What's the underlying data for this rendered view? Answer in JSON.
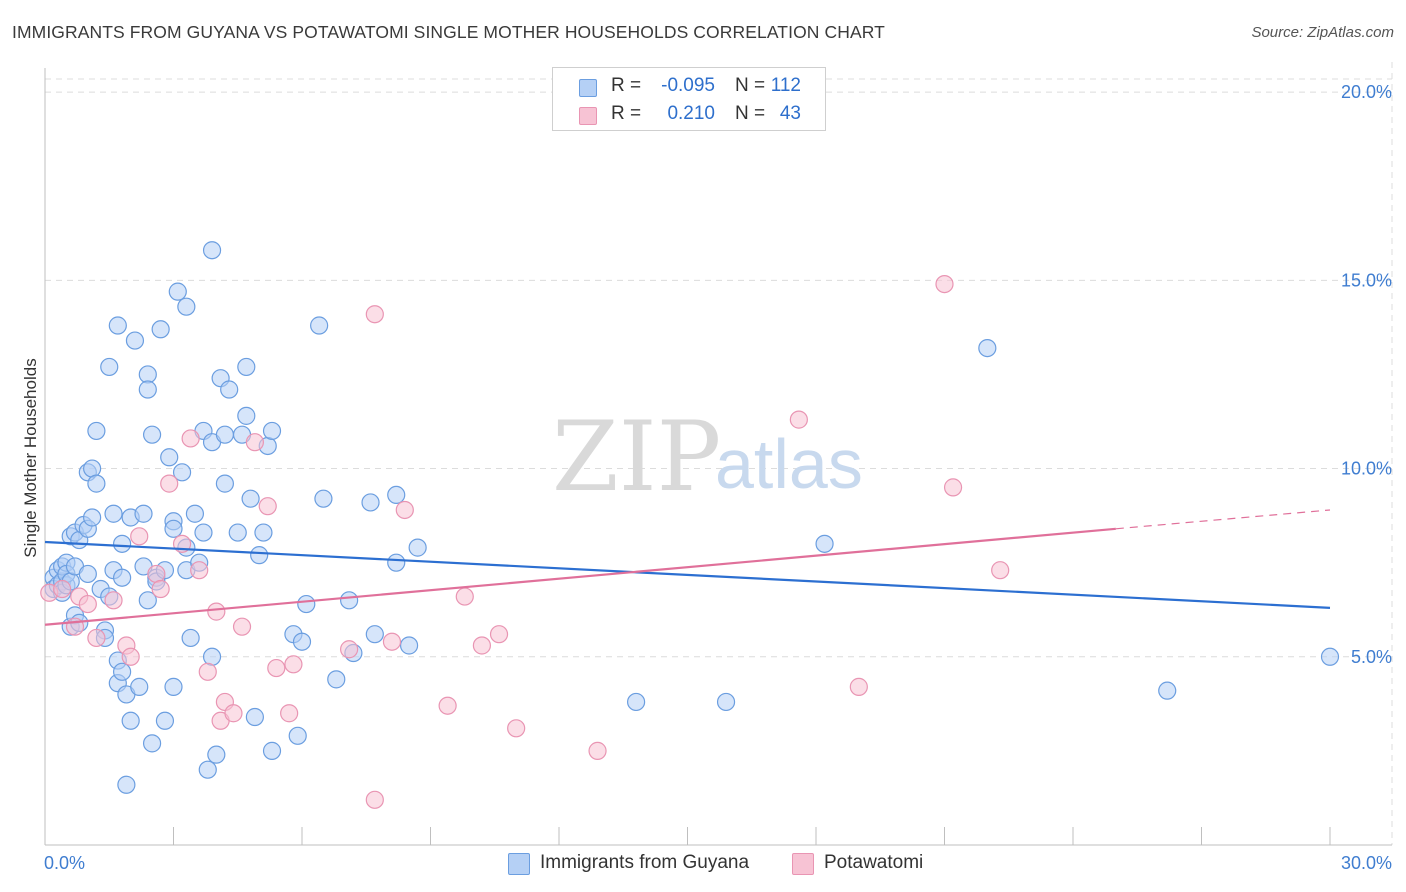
{
  "title": "IMMIGRANTS FROM GUYANA VS POTAWATOMI SINGLE MOTHER HOUSEHOLDS CORRELATION CHART",
  "source": "Source: ZipAtlas.com",
  "watermark": {
    "zip": "ZIP",
    "atlas": "atlas"
  },
  "legend": {
    "rows": [
      {
        "r_label": "R =",
        "r_value": "-0.095",
        "n_label": "N =",
        "n_value": "112"
      },
      {
        "r_label": "R =",
        "r_value": "0.210",
        "n_label": "N =",
        "n_value": "43"
      }
    ]
  },
  "bottom_legend": [
    "Immigrants from Guyana",
    "Potawatomi"
  ],
  "colors": {
    "blue_fill": "#b5d0f5",
    "blue_stroke": "#6b9ee0",
    "blue_line": "#2c6fd1",
    "pink_fill": "#f7c3d4",
    "pink_stroke": "#e995b3",
    "pink_line": "#e0709a",
    "tick_text": "#3f7dd0"
  },
  "chart_data": {
    "type": "scatter",
    "title": "IMMIGRANTS FROM GUYANA VS POTAWATOMI SINGLE MOTHER HOUSEHOLDS CORRELATION CHART",
    "xlabel": "",
    "ylabel": "Single Mother Households",
    "xlim": [
      0,
      30
    ],
    "ylim": [
      0,
      20.8
    ],
    "x_tick_labels": [
      "0.0%",
      "30.0%"
    ],
    "y_ticks": [
      5,
      10,
      15,
      20
    ],
    "y_tick_labels": [
      "5.0%",
      "10.0%",
      "15.0%",
      "20.0%"
    ],
    "grid": true,
    "legend_position": "top-center",
    "series": [
      {
        "name": "Immigrants from Guyana",
        "color": "#6b9ee0",
        "trend": {
          "x": [
            0,
            30
          ],
          "y": [
            8.05,
            6.3
          ]
        },
        "points": [
          [
            0.2,
            7.1
          ],
          [
            0.2,
            6.8
          ],
          [
            0.3,
            7.3
          ],
          [
            0.3,
            6.9
          ],
          [
            0.4,
            7.0
          ],
          [
            0.4,
            6.7
          ],
          [
            0.4,
            7.4
          ],
          [
            0.5,
            7.5
          ],
          [
            0.5,
            6.9
          ],
          [
            0.5,
            7.2
          ],
          [
            0.6,
            8.2
          ],
          [
            0.6,
            7.0
          ],
          [
            0.6,
            5.8
          ],
          [
            0.7,
            8.3
          ],
          [
            0.7,
            7.4
          ],
          [
            0.7,
            6.1
          ],
          [
            0.8,
            8.1
          ],
          [
            0.8,
            5.9
          ],
          [
            0.9,
            8.5
          ],
          [
            1.0,
            8.4
          ],
          [
            1.0,
            7.2
          ],
          [
            1.0,
            9.9
          ],
          [
            1.1,
            8.7
          ],
          [
            1.1,
            10.0
          ],
          [
            1.2,
            11.0
          ],
          [
            1.2,
            9.6
          ],
          [
            1.3,
            6.8
          ],
          [
            1.4,
            5.7
          ],
          [
            1.4,
            5.5
          ],
          [
            1.5,
            12.7
          ],
          [
            1.5,
            6.6
          ],
          [
            1.6,
            8.8
          ],
          [
            1.6,
            7.3
          ],
          [
            1.7,
            13.8
          ],
          [
            1.7,
            4.9
          ],
          [
            1.7,
            4.3
          ],
          [
            1.8,
            8.0
          ],
          [
            1.8,
            7.1
          ],
          [
            1.8,
            4.6
          ],
          [
            1.9,
            4.0
          ],
          [
            1.9,
            1.6
          ],
          [
            2.0,
            8.7
          ],
          [
            2.0,
            3.3
          ],
          [
            2.1,
            13.4
          ],
          [
            2.2,
            4.2
          ],
          [
            2.3,
            8.8
          ],
          [
            2.3,
            7.4
          ],
          [
            2.4,
            6.5
          ],
          [
            2.4,
            12.5
          ],
          [
            2.4,
            12.1
          ],
          [
            2.5,
            10.9
          ],
          [
            2.5,
            2.7
          ],
          [
            2.6,
            7.1
          ],
          [
            2.6,
            7.0
          ],
          [
            2.7,
            13.7
          ],
          [
            2.8,
            7.3
          ],
          [
            2.9,
            10.3
          ],
          [
            3.0,
            8.6
          ],
          [
            3.0,
            8.4
          ],
          [
            3.0,
            4.2
          ],
          [
            3.1,
            14.7
          ],
          [
            3.2,
            9.9
          ],
          [
            3.3,
            7.9
          ],
          [
            3.3,
            7.3
          ],
          [
            3.3,
            14.3
          ],
          [
            3.4,
            5.5
          ],
          [
            3.5,
            8.8
          ],
          [
            3.6,
            7.5
          ],
          [
            3.7,
            8.3
          ],
          [
            3.7,
            11.0
          ],
          [
            3.8,
            2.0
          ],
          [
            3.9,
            10.7
          ],
          [
            3.9,
            5.0
          ],
          [
            3.9,
            15.8
          ],
          [
            4.0,
            2.4
          ],
          [
            4.1,
            12.4
          ],
          [
            4.2,
            10.9
          ],
          [
            4.2,
            9.6
          ],
          [
            4.3,
            12.1
          ],
          [
            4.5,
            8.3
          ],
          [
            4.6,
            10.9
          ],
          [
            4.7,
            12.7
          ],
          [
            4.7,
            11.4
          ],
          [
            4.8,
            9.2
          ],
          [
            4.9,
            3.4
          ],
          [
            5.0,
            7.7
          ],
          [
            5.1,
            8.3
          ],
          [
            5.2,
            10.6
          ],
          [
            5.3,
            11.0
          ],
          [
            5.3,
            2.5
          ],
          [
            5.8,
            5.6
          ],
          [
            5.9,
            2.9
          ],
          [
            6.0,
            5.4
          ],
          [
            6.1,
            6.4
          ],
          [
            6.4,
            13.8
          ],
          [
            6.5,
            9.2
          ],
          [
            6.8,
            4.4
          ],
          [
            7.1,
            6.5
          ],
          [
            7.2,
            5.1
          ],
          [
            7.6,
            9.1
          ],
          [
            7.7,
            5.6
          ],
          [
            8.2,
            7.5
          ],
          [
            8.2,
            9.3
          ],
          [
            8.5,
            5.3
          ],
          [
            8.7,
            7.9
          ],
          [
            13.8,
            3.8
          ],
          [
            15.9,
            3.8
          ],
          [
            18.2,
            8.0
          ],
          [
            22.0,
            13.2
          ],
          [
            26.2,
            4.1
          ],
          [
            30.0,
            5.0
          ],
          [
            2.8,
            3.3
          ]
        ]
      },
      {
        "name": "Potawatomi",
        "color": "#e995b3",
        "trend": {
          "x": [
            0,
            25
          ],
          "y": [
            5.85,
            8.4
          ]
        },
        "trend_dashed": {
          "x": [
            25,
            30
          ],
          "y": [
            8.4,
            8.9
          ]
        },
        "points": [
          [
            0.1,
            6.7
          ],
          [
            0.4,
            6.8
          ],
          [
            0.7,
            5.8
          ],
          [
            0.8,
            6.6
          ],
          [
            1.0,
            6.4
          ],
          [
            1.2,
            5.5
          ],
          [
            1.6,
            6.5
          ],
          [
            1.9,
            5.3
          ],
          [
            2.0,
            5.0
          ],
          [
            2.2,
            8.2
          ],
          [
            2.6,
            7.2
          ],
          [
            2.7,
            6.8
          ],
          [
            2.9,
            9.6
          ],
          [
            3.2,
            8.0
          ],
          [
            3.4,
            10.8
          ],
          [
            3.6,
            7.3
          ],
          [
            3.8,
            4.6
          ],
          [
            4.0,
            6.2
          ],
          [
            4.1,
            3.3
          ],
          [
            4.2,
            3.8
          ],
          [
            4.4,
            3.5
          ],
          [
            4.6,
            5.8
          ],
          [
            4.9,
            10.7
          ],
          [
            5.2,
            9.0
          ],
          [
            5.4,
            4.7
          ],
          [
            5.7,
            3.5
          ],
          [
            5.8,
            4.8
          ],
          [
            7.1,
            5.2
          ],
          [
            7.7,
            1.2
          ],
          [
            7.7,
            14.1
          ],
          [
            8.1,
            5.4
          ],
          [
            8.4,
            8.9
          ],
          [
            9.4,
            3.7
          ],
          [
            9.8,
            6.6
          ],
          [
            10.2,
            5.3
          ],
          [
            10.6,
            5.6
          ],
          [
            11.0,
            3.1
          ],
          [
            12.9,
            2.5
          ],
          [
            17.6,
            11.3
          ],
          [
            19.0,
            4.2
          ],
          [
            21.0,
            14.9
          ],
          [
            21.2,
            9.5
          ],
          [
            22.3,
            7.3
          ]
        ]
      }
    ]
  }
}
